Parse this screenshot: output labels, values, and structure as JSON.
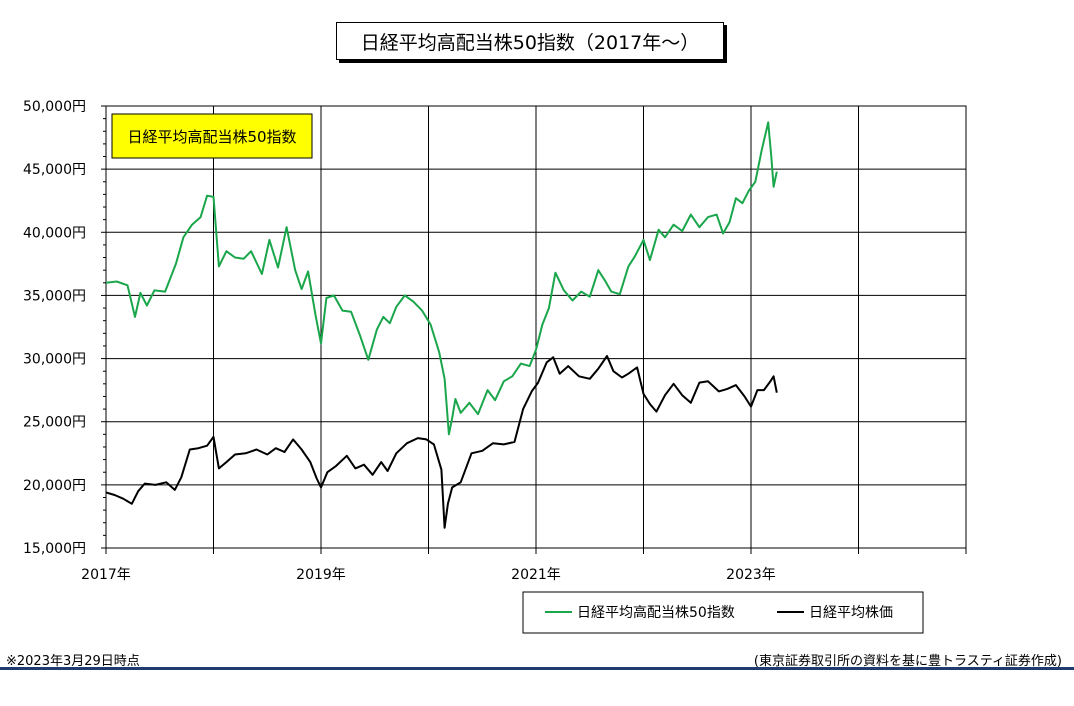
{
  "chart_data": {
    "type": "line",
    "title": "日経平均高配当株50指数（2017年～）",
    "inset_label": "日経平均高配当株50指数",
    "ylim": [
      15000,
      50000
    ],
    "y_ticks": [
      "15,000円",
      "20,000円",
      "25,000円",
      "30,000円",
      "35,000円",
      "40,000円",
      "45,000円",
      "50,000円"
    ],
    "x_ticks": [
      "2017年",
      "2019年",
      "2021年",
      "2023年"
    ],
    "xlim": [
      2017.0,
      2025.0
    ],
    "grid": true,
    "legend_position": "bottom-right",
    "series": [
      {
        "name": "日経平均高配当株50指数",
        "color": "#1aa64b",
        "x": [
          2017.0,
          2017.1,
          2017.2,
          2017.27,
          2017.32,
          2017.38,
          2017.45,
          2017.55,
          2017.65,
          2017.72,
          2017.8,
          2017.88,
          2017.94,
          2018.0,
          2018.05,
          2018.12,
          2018.2,
          2018.28,
          2018.35,
          2018.45,
          2018.52,
          2018.6,
          2018.68,
          2018.76,
          2018.82,
          2018.88,
          2018.95,
          2019.0,
          2019.05,
          2019.12,
          2019.2,
          2019.28,
          2019.36,
          2019.44,
          2019.52,
          2019.58,
          2019.64,
          2019.7,
          2019.78,
          2019.86,
          2019.94,
          2020.02,
          2020.1,
          2020.15,
          2020.19,
          2020.22,
          2020.25,
          2020.3,
          2020.38,
          2020.46,
          2020.55,
          2020.62,
          2020.7,
          2020.78,
          2020.86,
          2020.94,
          2021.0,
          2021.06,
          2021.12,
          2021.18,
          2021.26,
          2021.34,
          2021.42,
          2021.5,
          2021.58,
          2021.64,
          2021.7,
          2021.78,
          2021.86,
          2021.92,
          2022.0,
          2022.06,
          2022.14,
          2022.2,
          2022.28,
          2022.36,
          2022.44,
          2022.52,
          2022.6,
          2022.68,
          2022.74,
          2022.8,
          2022.86,
          2022.92,
          2022.98,
          2023.04,
          2023.1,
          2023.16,
          2023.19,
          2023.21,
          2023.24
        ],
        "y": [
          36000,
          36100,
          35800,
          33300,
          35200,
          34200,
          35400,
          35300,
          37500,
          39600,
          40600,
          41200,
          42900,
          42800,
          37300,
          38500,
          38000,
          37900,
          38500,
          36700,
          39400,
          37200,
          40400,
          37000,
          35500,
          36900,
          33400,
          31200,
          34800,
          35000,
          33800,
          33700,
          31900,
          29900,
          32300,
          33300,
          32800,
          34100,
          35000,
          34500,
          33800,
          32700,
          30500,
          28400,
          24000,
          25300,
          26800,
          25700,
          26500,
          25600,
          27500,
          26700,
          28200,
          28600,
          29600,
          29400,
          30700,
          32700,
          34000,
          36800,
          35400,
          34600,
          35300,
          34900,
          37000,
          36200,
          35300,
          35100,
          37300,
          38100,
          39400,
          37800,
          40200,
          39600,
          40600,
          40100,
          41400,
          40400,
          41200,
          41400,
          39900,
          40800,
          42700,
          42300,
          43300,
          44000,
          46500,
          48700,
          45900,
          43600,
          44800
        ]
      },
      {
        "name": "日経平均株価",
        "color": "#000000",
        "x": [
          2017.0,
          2017.08,
          2017.16,
          2017.24,
          2017.3,
          2017.36,
          2017.46,
          2017.56,
          2017.64,
          2017.7,
          2017.78,
          2017.86,
          2017.94,
          2018.0,
          2018.05,
          2018.12,
          2018.2,
          2018.3,
          2018.4,
          2018.5,
          2018.58,
          2018.66,
          2018.74,
          2018.82,
          2018.9,
          2018.96,
          2019.0,
          2019.06,
          2019.14,
          2019.24,
          2019.32,
          2019.4,
          2019.48,
          2019.56,
          2019.62,
          2019.7,
          2019.8,
          2019.9,
          2019.98,
          2020.05,
          2020.12,
          2020.15,
          2020.18,
          2020.22,
          2020.3,
          2020.4,
          2020.5,
          2020.6,
          2020.7,
          2020.8,
          2020.88,
          2020.96,
          2021.02,
          2021.1,
          2021.16,
          2021.22,
          2021.3,
          2021.4,
          2021.5,
          2021.58,
          2021.66,
          2021.72,
          2021.8,
          2021.86,
          2021.94,
          2022.0,
          2022.06,
          2022.12,
          2022.2,
          2022.28,
          2022.36,
          2022.44,
          2022.52,
          2022.6,
          2022.7,
          2022.78,
          2022.86,
          2022.94,
          2023.0,
          2023.06,
          2023.12,
          2023.18,
          2023.21,
          2023.24
        ],
        "y": [
          19400,
          19200,
          18900,
          18500,
          19500,
          20100,
          20000,
          20200,
          19600,
          20600,
          22800,
          22900,
          23100,
          23800,
          21300,
          21800,
          22400,
          22500,
          22800,
          22400,
          22900,
          22600,
          23600,
          22800,
          21800,
          20500,
          19800,
          21000,
          21500,
          22300,
          21300,
          21600,
          20800,
          21800,
          21100,
          22500,
          23300,
          23700,
          23600,
          23200,
          21200,
          16600,
          18500,
          19800,
          20200,
          22500,
          22700,
          23300,
          23200,
          23400,
          26000,
          27400,
          28100,
          29700,
          30100,
          28800,
          29400,
          28600,
          28400,
          29200,
          30200,
          29000,
          28500,
          28800,
          29300,
          27200,
          26400,
          25800,
          27100,
          28000,
          27100,
          26500,
          28100,
          28200,
          27400,
          27600,
          27900,
          27000,
          26200,
          27500,
          27500,
          28200,
          28600,
          27300
        ]
      }
    ]
  },
  "footnote": "※2023年3月29日時点",
  "source": "(東京証券取引所の資料を基に豊トラスティ証券作成)"
}
